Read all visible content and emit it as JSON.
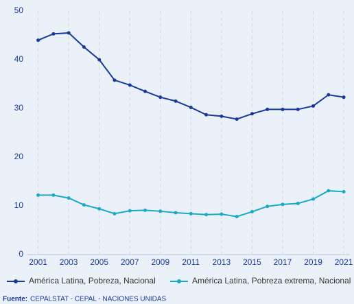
{
  "chart_data": {
    "type": "line",
    "x": [
      2001,
      2002,
      2003,
      2004,
      2005,
      2006,
      2007,
      2008,
      2009,
      2010,
      2011,
      2012,
      2013,
      2014,
      2015,
      2016,
      2017,
      2018,
      2019,
      2020,
      2021
    ],
    "series": [
      {
        "name": "América Latina, Pobreza, Nacional",
        "color": "#17399a",
        "values": [
          44.0,
          45.3,
          45.5,
          42.6,
          40.0,
          35.8,
          34.8,
          33.5,
          32.3,
          31.5,
          30.2,
          28.7,
          28.4,
          27.8,
          28.9,
          29.8,
          29.8,
          29.8,
          30.5,
          32.8,
          32.3
        ]
      },
      {
        "name": "América Latina, Pobreza extrema, Nacional",
        "color": "#19a9c6",
        "values": [
          12.2,
          12.2,
          11.6,
          10.2,
          9.4,
          8.4,
          9.0,
          9.1,
          8.9,
          8.6,
          8.4,
          8.2,
          8.3,
          7.8,
          8.8,
          9.9,
          10.3,
          10.5,
          11.4,
          13.1,
          12.9
        ]
      }
    ],
    "xlim": [
      2000.3,
      2021.4
    ],
    "xticks": [
      2001,
      2003,
      2005,
      2007,
      2009,
      2011,
      2013,
      2015,
      2017,
      2019,
      2021
    ],
    "ylim": [
      0,
      50
    ],
    "yticks": [
      0,
      10,
      20,
      30,
      40,
      50
    ],
    "grid": "x",
    "legend": "bottom",
    "source_label": "Fuente:",
    "source": "CEPALSTAT - CEPAL - NACIONES UNIDAS"
  }
}
